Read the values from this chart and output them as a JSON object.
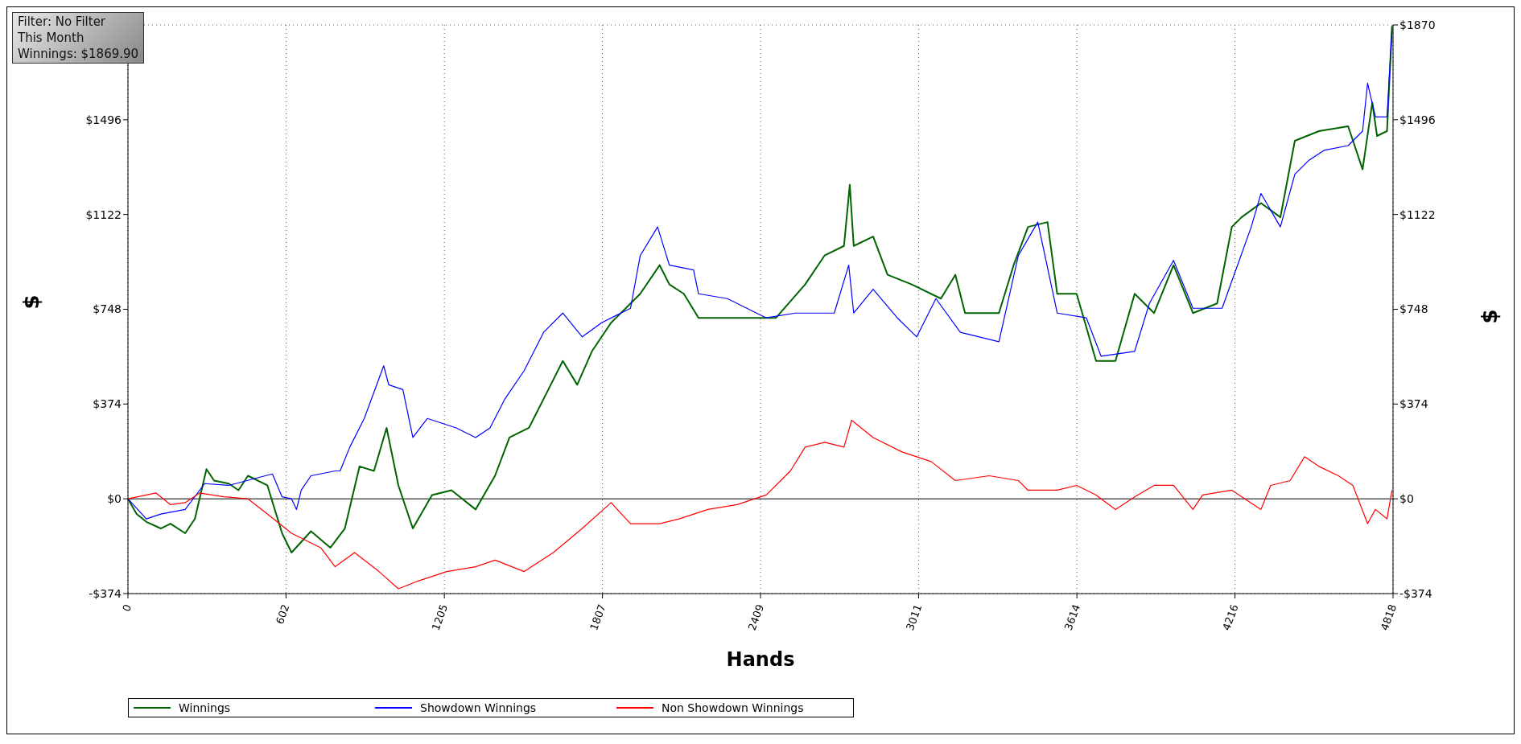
{
  "chart_data": {
    "type": "line",
    "xlabel": "Hands",
    "ylabel": "$",
    "y2label": "$",
    "annotations": [
      "Filter: No Filter",
      "This Month",
      "Winnings: $1869.90"
    ],
    "xlim": [
      0,
      4818
    ],
    "xticks": [
      0,
      602,
      1205,
      1807,
      2409,
      3011,
      3614,
      4216,
      4818
    ],
    "ylim": [
      -374,
      1870
    ],
    "yticks": [
      {
        "value": -374,
        "label": "-$374"
      },
      {
        "value": 0,
        "label": "$0"
      },
      {
        "value": 374,
        "label": "$374"
      },
      {
        "value": 748,
        "label": "$748"
      },
      {
        "value": 1122,
        "label": "$1122"
      },
      {
        "value": 1496,
        "label": "$1496"
      },
      {
        "value": 1870,
        "label": null
      }
    ],
    "y2lim": [
      -374,
      1870
    ],
    "y2ticks": [
      {
        "value": -374,
        "label": "-$374"
      },
      {
        "value": 0,
        "label": "$0"
      },
      {
        "value": 374,
        "label": "$374"
      },
      {
        "value": 748,
        "label": "$748"
      },
      {
        "value": 1122,
        "label": "$1122"
      },
      {
        "value": 1496,
        "label": "$1496"
      },
      {
        "value": 1870,
        "label": "$1870"
      }
    ],
    "grid": true,
    "legend": "bottom",
    "marker": "none",
    "line_style": "solid",
    "ref_lines": [
      {
        "axis": "y",
        "value": 0,
        "color": "#000000"
      }
    ],
    "series": [
      {
        "name": "Winnings",
        "color": "#006400",
        "x": [
          0,
          33,
          70,
          125,
          162,
          218,
          255,
          299,
          328,
          384,
          421,
          457,
          531,
          587,
          623,
          697,
          771,
          826,
          882,
          937,
          985,
          1030,
          1085,
          1158,
          1232,
          1324,
          1398,
          1453,
          1527,
          1601,
          1656,
          1711,
          1767,
          1840,
          1951,
          2025,
          2062,
          2117,
          2173,
          2320,
          2468,
          2579,
          2653,
          2727,
          2749,
          2764,
          2838,
          2893,
          2985,
          3096,
          3151,
          3188,
          3317,
          3373,
          3428,
          3502,
          3539,
          3613,
          3687,
          3761,
          3834,
          3908,
          3982,
          4056,
          4148,
          4204,
          4241,
          4315,
          4389,
          4444,
          4536,
          4647,
          4702,
          4739,
          4757,
          4795,
          4814
        ],
        "values": [
          0,
          -60,
          -91,
          -117,
          -98,
          -136,
          -79,
          117,
          72,
          60,
          34,
          91,
          53,
          -136,
          -212,
          -128,
          -193,
          -117,
          128,
          110,
          280,
          53,
          -117,
          15,
          34,
          -42,
          91,
          242,
          280,
          431,
          544,
          450,
          582,
          695,
          809,
          922,
          846,
          809,
          714,
          714,
          714,
          846,
          960,
          998,
          1239,
          998,
          1035,
          884,
          846,
          790,
          884,
          733,
          733,
          922,
          1073,
          1092,
          809,
          809,
          544,
          544,
          809,
          733,
          922,
          733,
          771,
          1073,
          1111,
          1167,
          1111,
          1413,
          1451,
          1470,
          1300,
          1564,
          1432,
          1451,
          1866
        ]
      },
      {
        "name": "Showdown Winnings",
        "color": "#0000ff",
        "x": [
          0,
          70,
          125,
          218,
          292,
          384,
          494,
          550,
          587,
          623,
          642,
          660,
          697,
          789,
          808,
          845,
          900,
          974,
          993,
          1047,
          1085,
          1140,
          1250,
          1324,
          1379,
          1435,
          1509,
          1583,
          1656,
          1730,
          1804,
          1914,
          1951,
          2017,
          2062,
          2154,
          2173,
          2283,
          2431,
          2542,
          2690,
          2745,
          2764,
          2838,
          2930,
          3004,
          3077,
          3170,
          3317,
          3391,
          3465,
          3539,
          3650,
          3706,
          3834,
          3890,
          3982,
          4056,
          4167,
          4278,
          4315,
          4389,
          4444,
          4499,
          4555,
          4647,
          4702,
          4721,
          4751,
          4795,
          4814
        ],
        "values": [
          0,
          -79,
          -60,
          -42,
          60,
          53,
          83,
          98,
          8,
          0,
          -42,
          34,
          91,
          110,
          110,
          204,
          317,
          525,
          450,
          431,
          242,
          317,
          280,
          242,
          280,
          393,
          506,
          657,
          733,
          639,
          695,
          752,
          960,
          1073,
          922,
          903,
          809,
          790,
          714,
          733,
          733,
          922,
          733,
          827,
          714,
          639,
          790,
          657,
          620,
          960,
          1092,
          733,
          714,
          563,
          582,
          771,
          941,
          752,
          752,
          1073,
          1205,
          1073,
          1281,
          1337,
          1375,
          1394,
          1451,
          1640,
          1507,
          1507,
          1847
        ]
      },
      {
        "name": "Non Showdown Winnings",
        "color": "#ff0000",
        "x": [
          0,
          70,
          107,
          162,
          218,
          273,
          365,
          457,
          531,
          623,
          734,
          789,
          863,
          956,
          1030,
          1103,
          1214,
          1324,
          1398,
          1509,
          1620,
          1730,
          1840,
          1914,
          2025,
          2099,
          2209,
          2320,
          2431,
          2523,
          2579,
          2653,
          2727,
          2756,
          2838,
          2948,
          3059,
          3151,
          3280,
          3391,
          3428,
          3539,
          3613,
          3687,
          3761,
          3834,
          3908,
          3982,
          4056,
          4093,
          4204,
          4315,
          4352,
          4426,
          4481,
          4536,
          4610,
          4665,
          4721,
          4751,
          4795,
          4814
        ],
        "values": [
          0,
          15,
          23,
          -23,
          -15,
          23,
          8,
          0,
          -60,
          -136,
          -193,
          -268,
          -212,
          -287,
          -355,
          -325,
          -287,
          -268,
          -242,
          -287,
          -212,
          -117,
          -15,
          -98,
          -98,
          -79,
          -42,
          -23,
          15,
          110,
          204,
          223,
          204,
          310,
          242,
          185,
          147,
          72,
          91,
          72,
          34,
          34,
          53,
          15,
          -42,
          8,
          53,
          53,
          -42,
          15,
          34,
          -42,
          53,
          72,
          166,
          128,
          91,
          53,
          -98,
          -42,
          -79,
          34
        ]
      }
    ]
  }
}
